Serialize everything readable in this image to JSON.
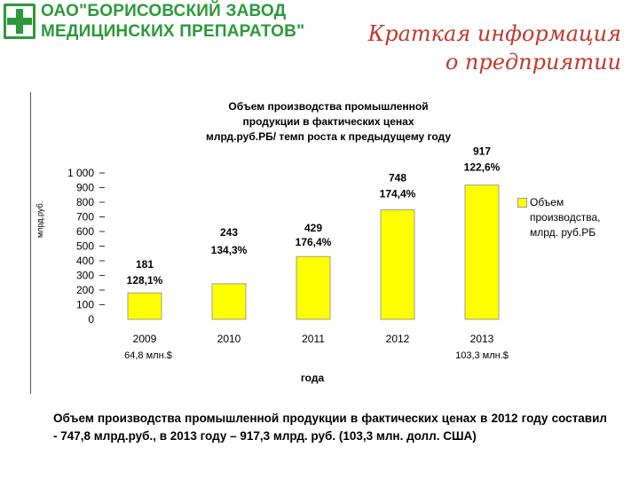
{
  "logo": {
    "line1": "ОАО\"БОРИСОВСКИЙ ЗАВОД",
    "line2": "МЕДИЦИНСКИХ ПРЕПАРАТОВ\"",
    "icon": "cross-logo-icon",
    "color": "#2a9a3a"
  },
  "slide": {
    "title_line1": "Краткая информация",
    "title_line2": "о предприятии",
    "title_color": "#c0392b"
  },
  "chart_data": {
    "type": "bar",
    "title_lines": [
      "Объем производства промышленной",
      "продукции в фактических ценах",
      "млрд.руб.РБ/ темп роста к предыдущему году"
    ],
    "ylabel": "млрд.руб.",
    "xlabel": "года",
    "ylim": [
      0,
      1000
    ],
    "yticks": [
      "0",
      "100",
      "200",
      "300",
      "400",
      "500",
      "600",
      "700",
      "800",
      "900",
      "1 000"
    ],
    "categories": [
      "2009",
      "2010",
      "2011",
      "2012",
      "2013"
    ],
    "category_sublabels": [
      "64,8 млн.$",
      "",
      "",
      "",
      "103,3 млн.$"
    ],
    "series": [
      {
        "name": "Объем производства, млрд. руб.РБ",
        "color": "#ffff00",
        "values": [
          181,
          243,
          429,
          748,
          917
        ],
        "value_labels": [
          "181",
          "243",
          "429",
          "748",
          "917"
        ],
        "growth_labels": [
          "128,1%",
          "134,3%",
          "176,4%",
          "174,4%",
          "122,6%"
        ]
      }
    ],
    "grid": false,
    "legend": "right"
  },
  "footer": {
    "text": "Объем производства промышленной продукции в фактических ценах в 2012 году составил - 747,8 млрд.руб., в 2013 году – 917,3 млрд. руб. (103,3 млн. долл. США)"
  }
}
